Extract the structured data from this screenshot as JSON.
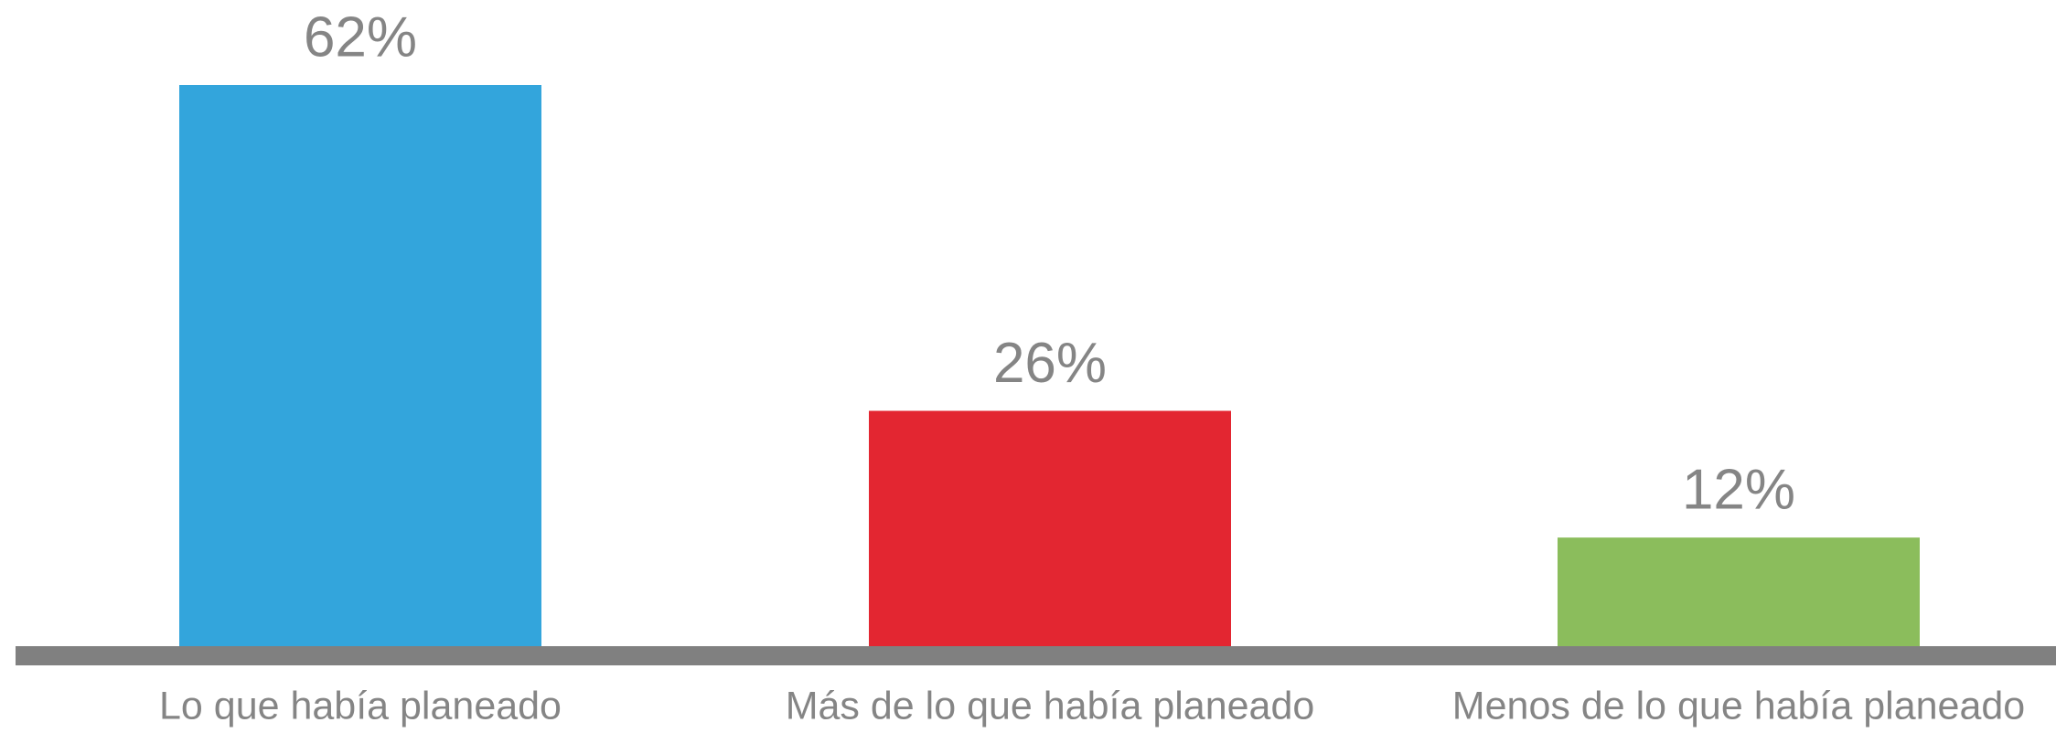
{
  "chart_data": {
    "type": "bar",
    "categories": [
      "Lo que había planeado",
      "Más de lo que había planeado",
      "Menos de lo que había planeado"
    ],
    "values": [
      62,
      26,
      12
    ],
    "value_labels": [
      "62%",
      "26%",
      "12%"
    ],
    "colors": [
      "#33a5dc",
      "#e32631",
      "#8bbd5c"
    ],
    "grid": false
  }
}
